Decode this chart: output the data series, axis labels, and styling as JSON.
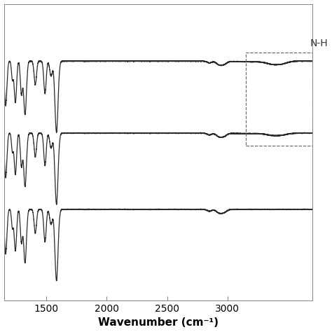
{
  "x_min": 3700,
  "x_max": 1150,
  "xlabel": "Wavenumber (cm⁻¹)",
  "background_color": "#ffffff",
  "line_color": "#2a2a2a",
  "line_width": 0.9,
  "dashed_box_color": "#666666",
  "nh_label": "N-H",
  "spectra_offsets": [
    0.78,
    0.44,
    0.08
  ],
  "x_ticks": [
    3000,
    2500,
    2000,
    1500
  ],
  "tick_fontsize": 10,
  "amplitude_scale": 0.28
}
